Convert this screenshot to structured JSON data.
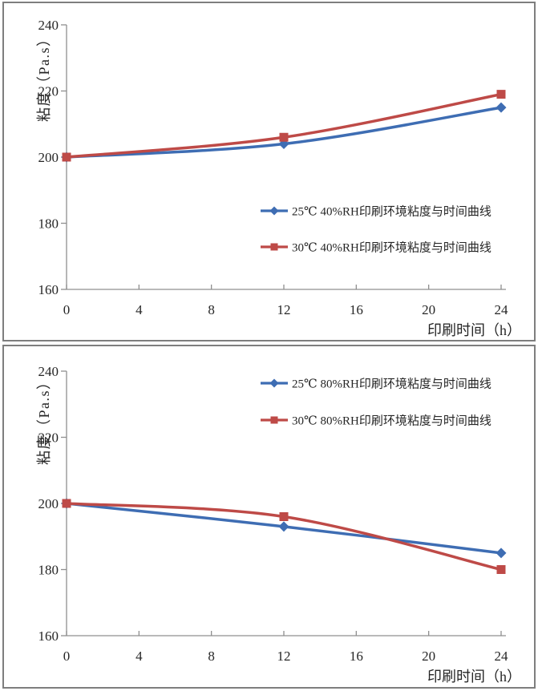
{
  "style": {
    "accent_blue": "#3E6DB3",
    "accent_red": "#BE4A47",
    "axis_color": "#8F8F8F",
    "text_color": "#262626",
    "panel_border": "#7E7E7E",
    "background": "#FFFFFF"
  },
  "chart_data": [
    {
      "type": "line",
      "title": "",
      "x": [
        0,
        12,
        24
      ],
      "xticks": [
        0,
        4,
        8,
        12,
        16,
        20,
        24
      ],
      "yticks": [
        160,
        180,
        200,
        220,
        240
      ],
      "xlim": [
        0,
        24
      ],
      "ylim": [
        160,
        240
      ],
      "xlabel": "印刷时间（h）",
      "ylabel": "粘度（Pa.s）",
      "grid": false,
      "legend_position": "inside-middle-right",
      "series": [
        {
          "name": "25℃ 40%RH印刷环境粘度与时间曲线",
          "marker": "diamond",
          "color": "#3E6DB3",
          "values": [
            200,
            204,
            215
          ]
        },
        {
          "name": "30℃ 40%RH印刷环境粘度与时间曲线",
          "marker": "square",
          "color": "#BE4A47",
          "values": [
            200,
            206,
            219
          ]
        }
      ]
    },
    {
      "type": "line",
      "title": "",
      "x": [
        0,
        12,
        24
      ],
      "xticks": [
        0,
        4,
        8,
        12,
        16,
        20,
        24
      ],
      "yticks": [
        160,
        180,
        200,
        220,
        240
      ],
      "xlim": [
        0,
        24
      ],
      "ylim": [
        160,
        240
      ],
      "xlabel": "印刷时间（h）",
      "ylabel": "粘度（Pa.s）",
      "grid": false,
      "legend_position": "inside-top-right",
      "series": [
        {
          "name": "25℃ 80%RH印刷环境粘度与时间曲线",
          "marker": "diamond",
          "color": "#3E6DB3",
          "values": [
            200,
            193,
            185
          ]
        },
        {
          "name": "30℃ 80%RH印刷环境粘度与时间曲线",
          "marker": "square",
          "color": "#BE4A47",
          "values": [
            200,
            196,
            180
          ]
        }
      ]
    }
  ]
}
